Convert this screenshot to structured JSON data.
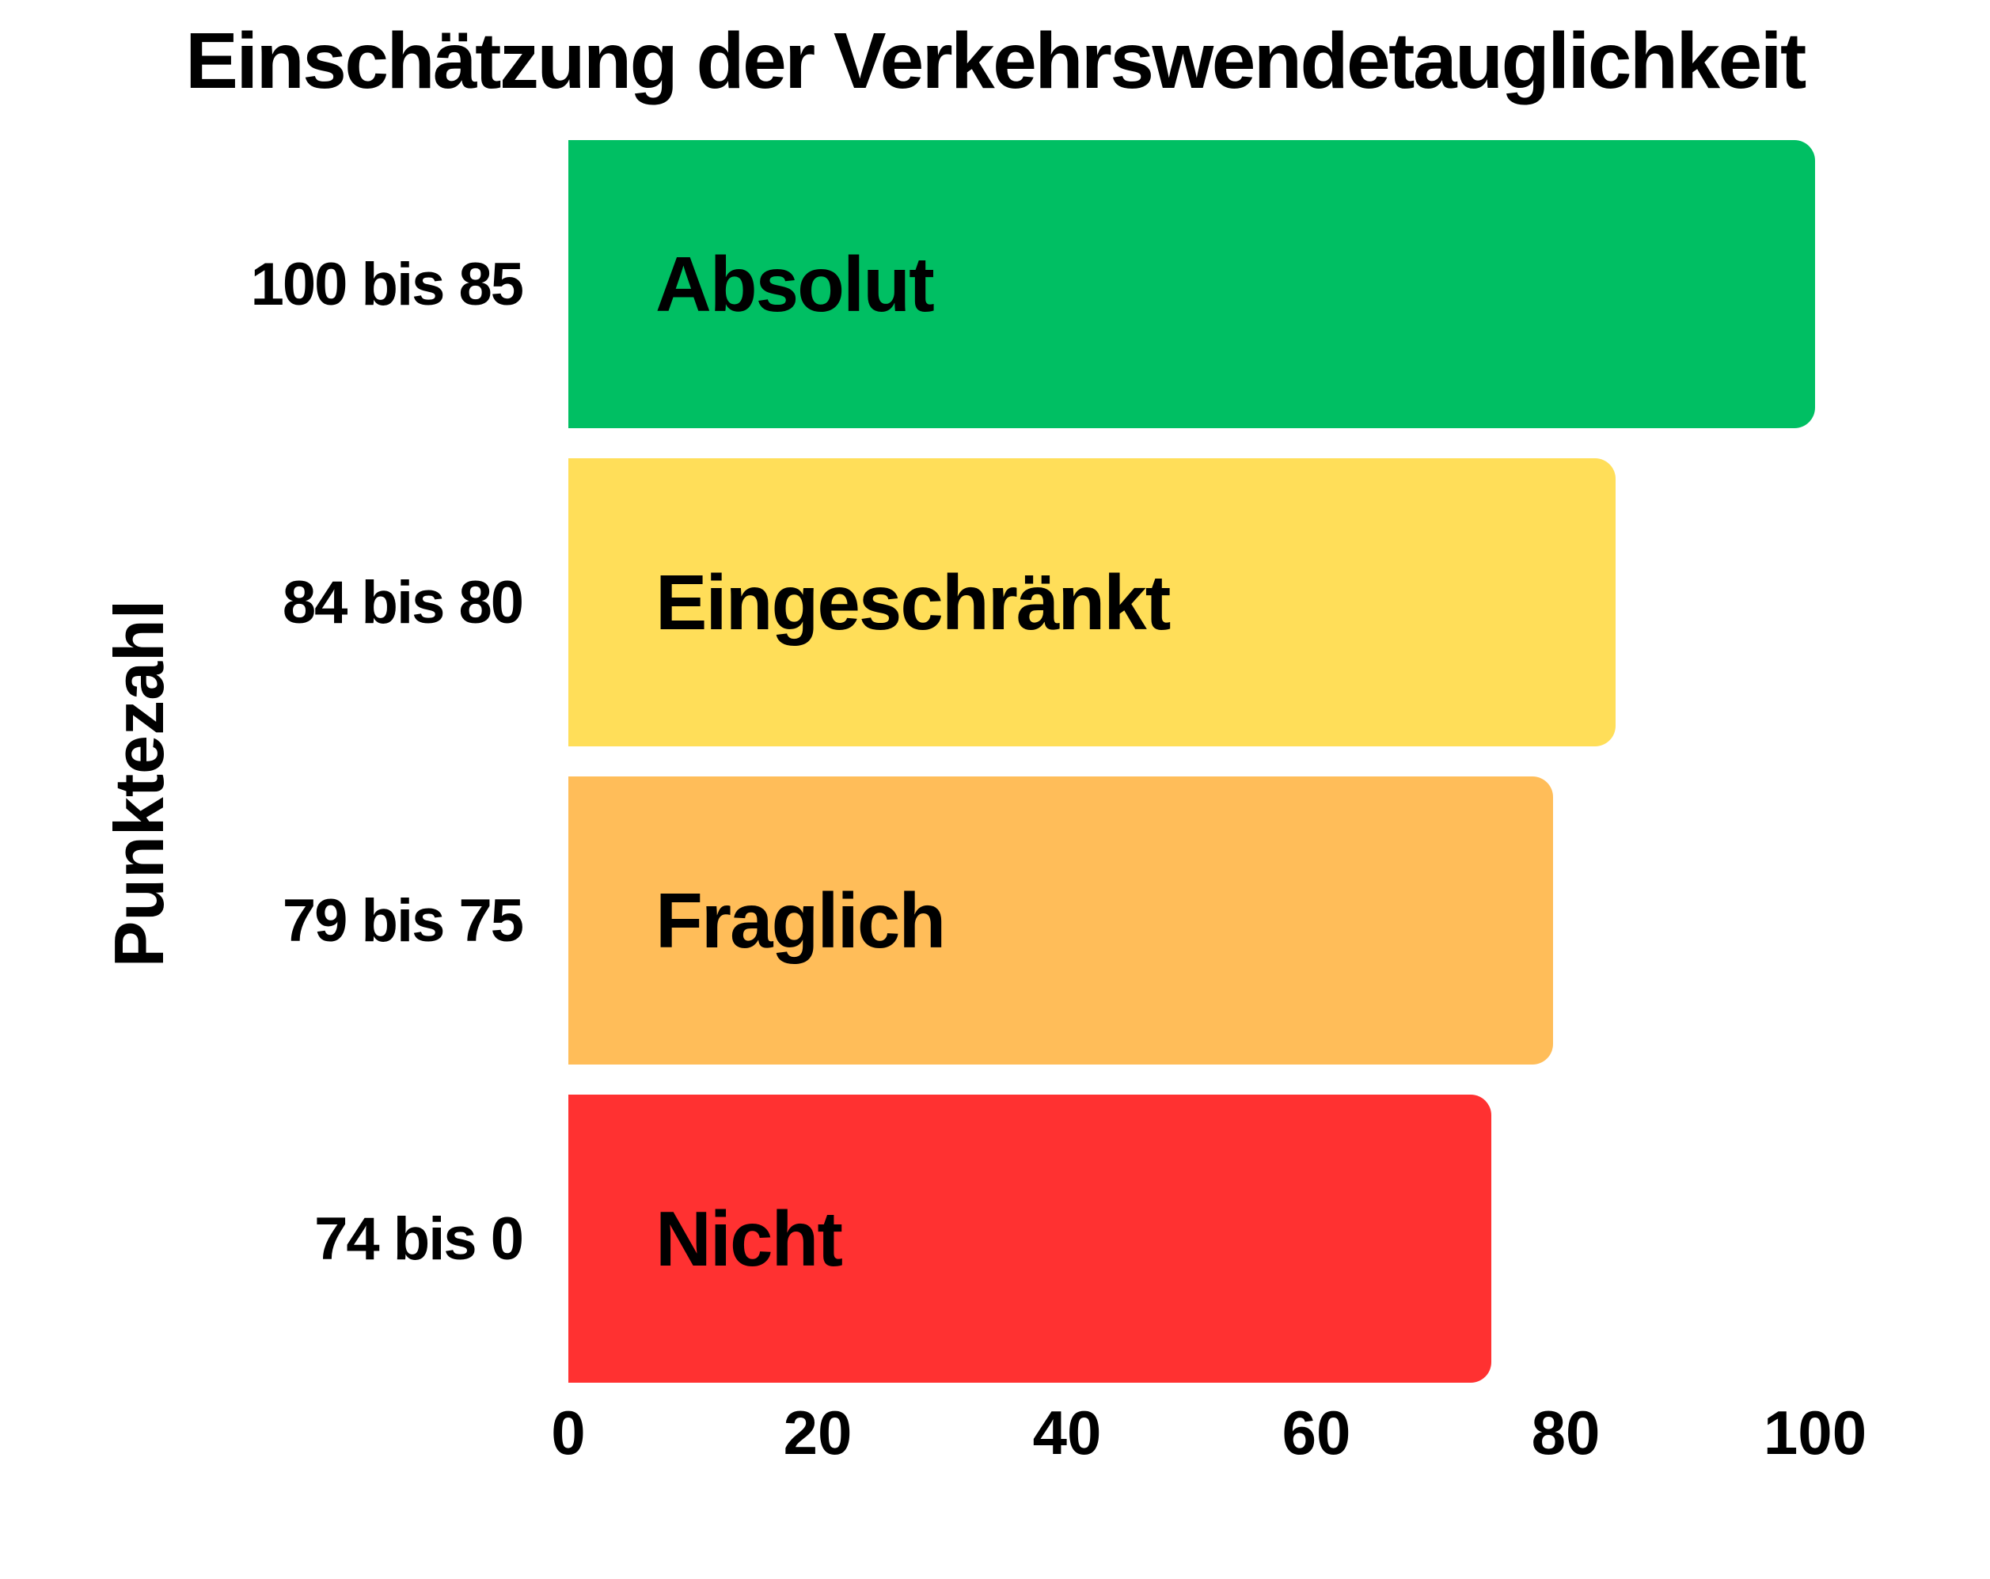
{
  "title": "Einschätzung der Verkehrswendetauglichkeit",
  "chart_data": {
    "type": "bar",
    "orientation": "horizontal",
    "title": "Einschätzung der Verkehrswendetauglichkeit",
    "xlabel": "",
    "ylabel": "Punktezahl",
    "xlim": [
      0,
      100
    ],
    "x_ticks": [
      "0",
      "20",
      "40",
      "60",
      "80",
      "100"
    ],
    "grid": false,
    "legend": false,
    "categories": [
      "100 bis 85",
      "84 bis 80",
      "79 bis 75",
      "74 bis 0"
    ],
    "rows": [
      {
        "range_label": "100 bis 85",
        "bar_label": "Absolut",
        "value": 100,
        "color": "#00BF63"
      },
      {
        "range_label": "84 bis 80",
        "bar_label": "Eingeschränkt",
        "value": 84,
        "color": "#FFDE59"
      },
      {
        "range_label": "79 bis 75",
        "bar_label": "Fraglich",
        "value": 79,
        "color": "#FFBD59"
      },
      {
        "range_label": "74 bis 0",
        "bar_label": "Nicht",
        "value": 74,
        "color": "#FF3131"
      }
    ],
    "colors": {
      "background": "#FFFFFF",
      "text": "#000000"
    }
  }
}
